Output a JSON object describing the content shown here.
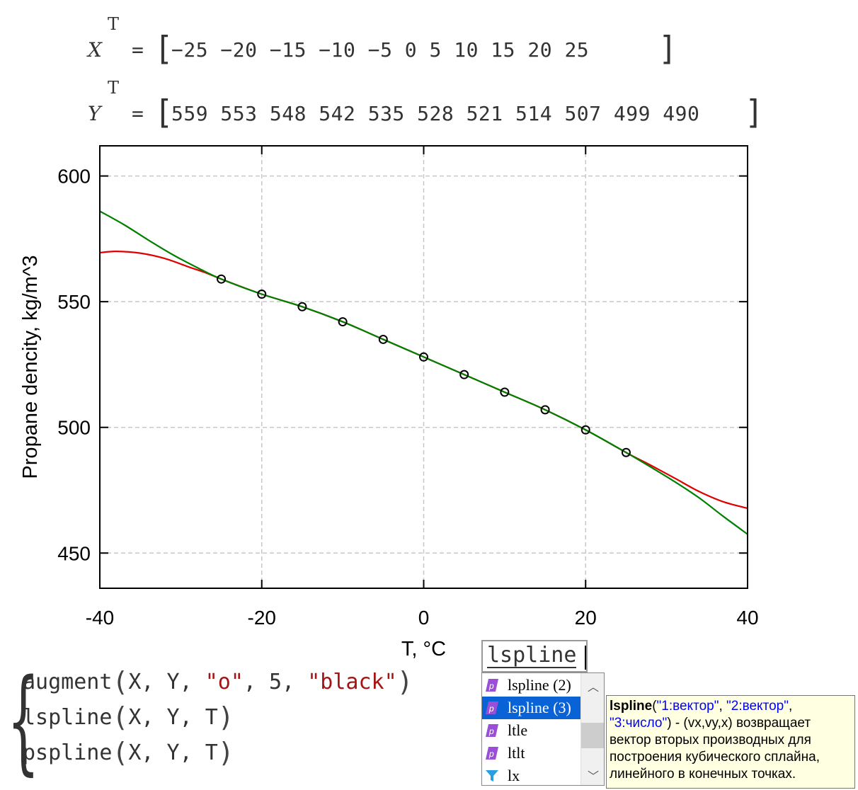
{
  "matrices": {
    "x": {
      "var": "X",
      "sup": "T",
      "eq": "=",
      "values": "−25 −20 −15 −10 −5 0 5 10 15 20 25"
    },
    "y": {
      "var": "Y",
      "sup": "T",
      "eq": "=",
      "values": "559 553 548 542 535 528 521 514 507 499 490"
    }
  },
  "chart_data": {
    "type": "line",
    "xlabel": "T, °C",
    "ylabel": "Propane dencity, kg/m^3",
    "xlim": [
      -40,
      40
    ],
    "ylim": [
      436,
      612
    ],
    "xticks": [
      -40,
      -20,
      0,
      20,
      40
    ],
    "yticks": [
      450,
      500,
      550,
      600
    ],
    "grid": true,
    "points": {
      "x": [
        -25,
        -20,
        -15,
        -10,
        -5,
        0,
        5,
        10,
        15,
        20,
        25
      ],
      "y": [
        559,
        553,
        548,
        542,
        535,
        528,
        521,
        514,
        507,
        499,
        490
      ],
      "marker": "o",
      "color": "#000000"
    },
    "series": [
      {
        "color": "#e00000",
        "x": [
          -40,
          -38,
          -35,
          -32,
          -29,
          -27,
          -25,
          -20,
          -15,
          -10,
          -5,
          0,
          5,
          10,
          15,
          20,
          25,
          28,
          31,
          34,
          37,
          40
        ],
        "y": [
          569.5,
          570,
          569.3,
          567.2,
          563.8,
          561.6,
          559,
          553,
          548,
          542,
          535,
          528,
          521,
          514,
          507,
          499,
          490,
          485,
          479.8,
          474.5,
          470.4,
          467.8
        ]
      },
      {
        "color": "#008000",
        "x": [
          -40,
          -37,
          -34,
          -31,
          -28,
          -25,
          -20,
          -15,
          -10,
          -5,
          0,
          5,
          10,
          15,
          20,
          25,
          28,
          31,
          34,
          37,
          40
        ],
        "y": [
          586,
          580.6,
          574.5,
          568.7,
          563.6,
          559,
          553,
          548,
          542,
          535,
          528,
          521,
          514,
          507,
          499,
          490,
          484.3,
          478.4,
          472,
          464.6,
          457.5
        ]
      }
    ]
  },
  "formulas": {
    "line1": {
      "fn": "augment",
      "args": "X, Y, ",
      "s1": "\"o\"",
      "mid": ", 5, ",
      "s2": "\"black\""
    },
    "line2": {
      "fn": "lspline",
      "args": "X, Y, T"
    },
    "line3": {
      "fn": "pspline",
      "args": "X, Y, T"
    }
  },
  "autocomplete": {
    "input_value": "lspline",
    "items": [
      {
        "label": "lspline (2)",
        "icon": "function-icon",
        "selected": false
      },
      {
        "label": "lspline (3)",
        "icon": "function-icon",
        "selected": true
      },
      {
        "label": "ltle",
        "icon": "function-icon",
        "selected": false
      },
      {
        "label": "ltlt",
        "icon": "function-icon",
        "selected": false
      },
      {
        "label": "lx",
        "icon": "funnel-icon",
        "selected": false
      }
    ]
  },
  "tooltip": {
    "fn": "lspline",
    "arg1": "\"1:вектор\"",
    "arg2": "\"2:вектор\"",
    "arg3": "\"3:число\"",
    "desc": " - (vx,vy,x) возвращает вектор вторых производных для построения кубического сплайна, линейного в конечных точках."
  }
}
